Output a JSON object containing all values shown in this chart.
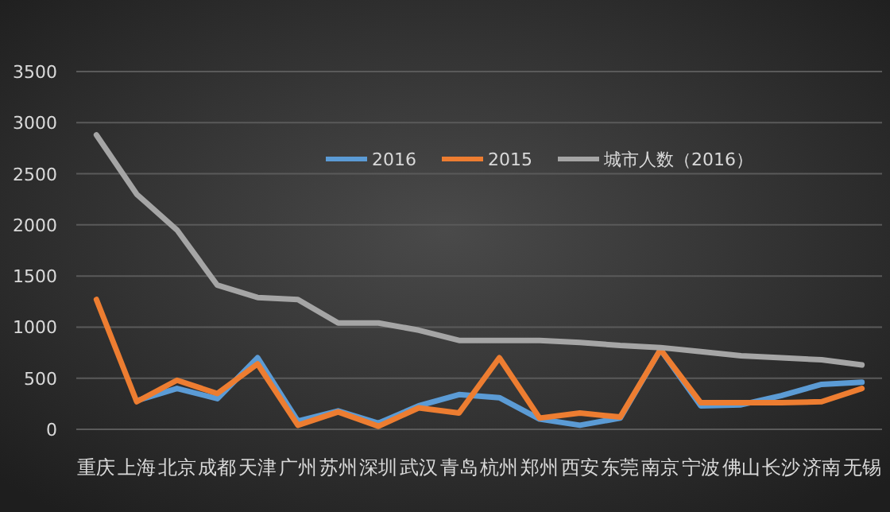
{
  "chart_data": {
    "type": "line",
    "categories": [
      "重庆",
      "上海",
      "北京",
      "成都",
      "天津",
      "广州",
      "苏州",
      "深圳",
      "武汉",
      "青岛",
      "杭州",
      "郑州",
      "西安",
      "东莞",
      "南京",
      "宁波",
      "佛山",
      "长沙",
      "济南",
      "无锡"
    ],
    "series": [
      {
        "name": "2016",
        "color": "#5b9bd5",
        "values": [
          null,
          280,
          400,
          300,
          700,
          80,
          180,
          60,
          230,
          340,
          310,
          100,
          40,
          110,
          780,
          230,
          240,
          330,
          440,
          460
        ]
      },
      {
        "name": "2015",
        "color": "#ed7d31",
        "values": [
          1270,
          270,
          480,
          350,
          640,
          40,
          170,
          30,
          210,
          160,
          700,
          110,
          160,
          120,
          780,
          260,
          260,
          260,
          270,
          400
        ]
      },
      {
        "name": "城市人数（2016）",
        "color": "#a5a5a5",
        "values": [
          2880,
          2300,
          1950,
          1410,
          1290,
          1270,
          1040,
          1040,
          970,
          870,
          870,
          870,
          850,
          820,
          800,
          760,
          720,
          700,
          680,
          630
        ]
      }
    ],
    "ylim": [
      0,
      3500
    ],
    "yticks": [
      0,
      500,
      1000,
      1500,
      2000,
      2500,
      3000,
      3500
    ],
    "grid": "y",
    "legend": "top",
    "marker": "none",
    "line_style": "solid"
  }
}
